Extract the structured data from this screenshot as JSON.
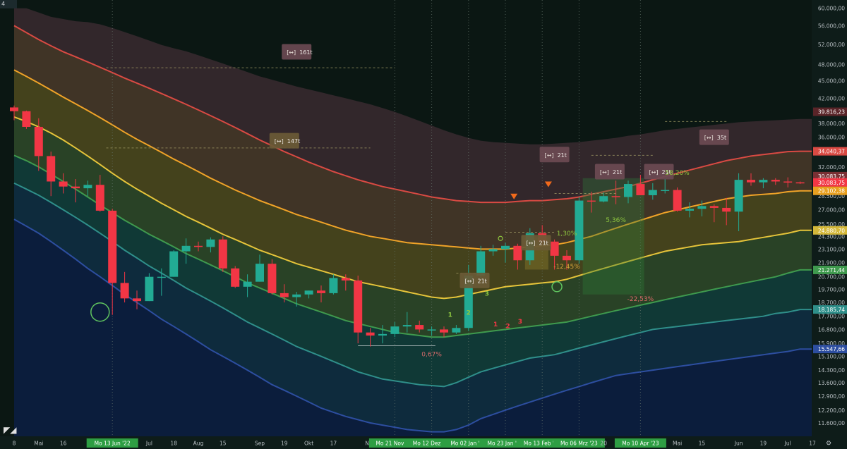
{
  "corner_label": "4",
  "colors": {
    "background": "#0b1713",
    "up": "#22ab94",
    "down": "#f23645",
    "band_red": "#d94a43",
    "band_orange": "#f0a328",
    "band_yellow": "#e6c43a",
    "band_green": "#3f9a4e",
    "band_teal": "#2f8f8a",
    "band_blue": "#2d4ea0",
    "highlight": "#2e9e43"
  },
  "chart_data": {
    "type": "candlestick",
    "y_scale": "log",
    "ylim": [
      11000,
      62000
    ],
    "y_ticks": [
      "60.000,00",
      "56.000,00",
      "52.000,00",
      "48.000,00",
      "45.000,00",
      "42.000,00",
      "38.000,00",
      "36.000,00",
      "34.000,00",
      "32.000,00",
      "30.000,00",
      "28.500,00",
      "27.000,00",
      "25.500,00",
      "24.300,00",
      "23.100,00",
      "21.900,00",
      "20.700,00",
      "19.700,00",
      "18.700,00",
      "17.700,00",
      "16.800,00",
      "15.900,00",
      "15.100,00",
      "14.300,00",
      "13.600,00",
      "12.900,00",
      "12.200,00",
      "11.600,00"
    ],
    "x_ticks": [
      {
        "label": "8",
        "week": 0,
        "hl": false
      },
      {
        "label": "Mai",
        "week": 2,
        "hl": false
      },
      {
        "label": "16",
        "week": 4,
        "hl": false
      },
      {
        "label": "Mo 13 Jun '22",
        "week": 8,
        "hl": true
      },
      {
        "label": "Jul",
        "week": 11,
        "hl": false
      },
      {
        "label": "18",
        "week": 13,
        "hl": false
      },
      {
        "label": "Aug",
        "week": 15,
        "hl": false
      },
      {
        "label": "15",
        "week": 17,
        "hl": false
      },
      {
        "label": "Sep",
        "week": 20,
        "hl": false
      },
      {
        "label": "19",
        "week": 22,
        "hl": false
      },
      {
        "label": "Okt",
        "week": 24,
        "hl": false
      },
      {
        "label": "17",
        "week": 26,
        "hl": false
      },
      {
        "label": "Nov",
        "week": 29,
        "hl": false
      },
      {
        "label": "Mo 21 Nov '22",
        "week": 31,
        "hl": true
      },
      {
        "label": "Mo 12 Dez '22",
        "week": 34,
        "hl": true
      },
      {
        "label": "Mo 02 Jan '23",
        "week": 37,
        "hl": true
      },
      {
        "label": "Mo 23 Jan '23",
        "week": 40,
        "hl": true
      },
      {
        "label": "Mo 13 Feb '23",
        "week": 43,
        "hl": true
      },
      {
        "label": "Mo 06 Mrz '23",
        "week": 46,
        "hl": true
      },
      {
        "label": "20",
        "week": 48,
        "hl": false
      },
      {
        "label": "Mo 10 Apr '23",
        "week": 51,
        "hl": true
      },
      {
        "label": "Mai",
        "week": 54,
        "hl": false
      },
      {
        "label": "15",
        "week": 56,
        "hl": false
      },
      {
        "label": "Jun",
        "week": 59,
        "hl": false
      },
      {
        "label": "19",
        "week": 61,
        "hl": false
      },
      {
        "label": "Jul",
        "week": 63,
        "hl": false
      },
      {
        "label": "17",
        "week": 65,
        "hl": false
      }
    ],
    "candles": [
      [
        40500,
        40800,
        38500,
        39900
      ],
      [
        39900,
        40000,
        37200,
        37500
      ],
      [
        37500,
        38800,
        31500,
        33400
      ],
      [
        33400,
        34000,
        28500,
        30200
      ],
      [
        30200,
        31200,
        28800,
        29600
      ],
      [
        29600,
        30500,
        27800,
        29400
      ],
      [
        29400,
        30300,
        28500,
        29800
      ],
      [
        29800,
        31000,
        26800,
        26900
      ],
      [
        26900,
        27100,
        17800,
        20200
      ],
      [
        20200,
        21100,
        18700,
        19000
      ],
      [
        19000,
        19600,
        18200,
        18800
      ],
      [
        18800,
        21000,
        18800,
        20700
      ],
      [
        20700,
        21400,
        19200,
        20700
      ],
      [
        20700,
        23000,
        20700,
        22900
      ],
      [
        22900,
        24100,
        21800,
        23400
      ],
      [
        23400,
        23800,
        22900,
        23300
      ],
      [
        23300,
        24200,
        22800,
        24000
      ],
      [
        24000,
        24300,
        21100,
        21400
      ],
      [
        21400,
        21600,
        19800,
        19900
      ],
      [
        19900,
        20900,
        19100,
        20300
      ],
      [
        20300,
        22600,
        20300,
        21800
      ],
      [
        21800,
        22200,
        19300,
        19400
      ],
      [
        19400,
        20100,
        18700,
        19100
      ],
      [
        19100,
        19500,
        18400,
        19300
      ],
      [
        19300,
        19600,
        19000,
        19600
      ],
      [
        19600,
        20000,
        18700,
        19400
      ],
      [
        19400,
        20900,
        19300,
        20600
      ],
      [
        20600,
        20900,
        19600,
        20400
      ],
      [
        20400,
        20800,
        15900,
        16600
      ],
      [
        16600,
        16900,
        15700,
        16400
      ],
      [
        16400,
        17100,
        15900,
        16500
      ],
      [
        16500,
        17300,
        16300,
        17000
      ],
      [
        17000,
        18000,
        16600,
        17100
      ],
      [
        17100,
        17400,
        16600,
        16800
      ],
      [
        16800,
        17000,
        16400,
        16800
      ],
      [
        16800,
        17000,
        16300,
        16600
      ],
      [
        16600,
        17100,
        16500,
        16900
      ],
      [
        16900,
        21700,
        16700,
        20800
      ],
      [
        20800,
        23400,
        20500,
        22900
      ],
      [
        22900,
        23500,
        22500,
        23100
      ],
      [
        23100,
        23700,
        21900,
        23400
      ],
      [
        23400,
        23600,
        21300,
        22100
      ],
      [
        22100,
        25100,
        21700,
        24600
      ],
      [
        24600,
        25400,
        23500,
        23800
      ],
      [
        23800,
        24000,
        21300,
        22500
      ],
      [
        22500,
        23000,
        21300,
        22100
      ],
      [
        22100,
        28400,
        21800,
        28000
      ],
      [
        28000,
        29000,
        26700,
        27900
      ],
      [
        27900,
        28900,
        27800,
        28500
      ],
      [
        28500,
        30300,
        27600,
        28400
      ],
      [
        28400,
        30300,
        27700,
        29900
      ],
      [
        29900,
        31000,
        28600,
        28600
      ],
      [
        28600,
        30000,
        28100,
        29200
      ],
      [
        29200,
        30500,
        28800,
        29200
      ],
      [
        29200,
        29500,
        26800,
        26900
      ],
      [
        26900,
        27800,
        26200,
        27100
      ],
      [
        27100,
        28000,
        26300,
        27400
      ],
      [
        27400,
        27600,
        25700,
        27200
      ],
      [
        27200,
        28300,
        25400,
        26800
      ],
      [
        26800,
        31200,
        24800,
        30400
      ],
      [
        30400,
        31200,
        29700,
        30100
      ],
      [
        30100,
        30600,
        29400,
        30400
      ],
      [
        30400,
        30600,
        29800,
        30200
      ],
      [
        30200,
        30700,
        29500,
        30100
      ],
      [
        30100,
        30200,
        29900,
        30084
      ]
    ],
    "bands": [
      {
        "name": "outer",
        "last": "",
        "values": [
          60000,
          60000,
          59000,
          58000,
          57500,
          57000,
          56800,
          56300,
          55500,
          54600,
          53700,
          52800,
          51900,
          51200,
          50600,
          49800,
          49000,
          48200,
          47400,
          46600,
          45800,
          45200,
          44600,
          44000,
          43500,
          43000,
          42500,
          42000,
          41500,
          41000,
          40400,
          39800,
          39100,
          38400,
          37700,
          37000,
          36400,
          35900,
          35500,
          35300,
          35200,
          35100,
          35000,
          35000,
          35100,
          35200,
          35300,
          35500,
          35700,
          35900,
          36200,
          36400,
          36700,
          37000,
          37200,
          37400,
          37600,
          37800,
          38000,
          38200,
          38300,
          38400,
          38500,
          38600,
          38700
        ]
      },
      {
        "name": "red",
        "last": "34.040,37",
        "values": [
          56000,
          54500,
          53000,
          51700,
          50500,
          49500,
          48500,
          47500,
          46500,
          45500,
          44600,
          43700,
          42800,
          41900,
          41000,
          40100,
          39200,
          38300,
          37400,
          36500,
          35600,
          34800,
          34000,
          33300,
          32600,
          32000,
          31400,
          30900,
          30400,
          30000,
          29600,
          29300,
          29000,
          28700,
          28400,
          28200,
          28000,
          27900,
          27800,
          27800,
          27800,
          27900,
          28000,
          28000,
          28100,
          28200,
          28400,
          28700,
          29000,
          29300,
          29600,
          30000,
          30400,
          30800,
          31200,
          31600,
          32000,
          32400,
          32800,
          33100,
          33400,
          33600,
          33800,
          34000,
          34040
        ]
      },
      {
        "name": "orange",
        "last": "29.102,38",
        "values": [
          47000,
          45800,
          44600,
          43400,
          42200,
          41100,
          40000,
          38900,
          37800,
          36700,
          35700,
          34800,
          33900,
          33000,
          32200,
          31400,
          30600,
          29900,
          29200,
          28600,
          28000,
          27500,
          27000,
          26500,
          26100,
          25700,
          25300,
          24900,
          24600,
          24300,
          24100,
          23900,
          23700,
          23600,
          23500,
          23400,
          23300,
          23200,
          23100,
          23100,
          23100,
          23200,
          23300,
          23400,
          23500,
          23700,
          24000,
          24300,
          24700,
          25100,
          25500,
          25900,
          26300,
          26700,
          27000,
          27300,
          27600,
          27900,
          28200,
          28400,
          28600,
          28700,
          28800,
          29000,
          29102
        ]
      },
      {
        "name": "yellow",
        "last": "24.880,70",
        "values": [
          39000,
          38300,
          37500,
          36600,
          35600,
          34500,
          33400,
          32300,
          31200,
          30200,
          29300,
          28500,
          27700,
          27000,
          26300,
          25700,
          25100,
          24500,
          24000,
          23500,
          23000,
          22600,
          22200,
          21800,
          21500,
          21200,
          20900,
          20600,
          20300,
          20100,
          19900,
          19700,
          19500,
          19300,
          19100,
          19000,
          19100,
          19300,
          19500,
          19700,
          19900,
          20000,
          20100,
          20200,
          20300,
          20500,
          20800,
          21100,
          21400,
          21700,
          22000,
          22300,
          22600,
          22900,
          23100,
          23300,
          23500,
          23600,
          23700,
          23800,
          24000,
          24200,
          24400,
          24600,
          24880
        ]
      },
      {
        "name": "green",
        "last": "21.271,44",
        "values": [
          33500,
          32800,
          32000,
          31100,
          30200,
          29300,
          28400,
          27500,
          26700,
          25900,
          25200,
          24500,
          23900,
          23300,
          22700,
          22200,
          21700,
          21200,
          20700,
          20200,
          19800,
          19400,
          19000,
          18600,
          18300,
          18000,
          17700,
          17400,
          17200,
          17000,
          16800,
          16600,
          16500,
          16400,
          16300,
          16300,
          16400,
          16500,
          16600,
          16700,
          16800,
          16900,
          17000,
          17100,
          17200,
          17300,
          17500,
          17700,
          17900,
          18100,
          18300,
          18500,
          18700,
          18900,
          19100,
          19300,
          19500,
          19700,
          19900,
          20100,
          20300,
          20500,
          20700,
          21000,
          21271
        ]
      },
      {
        "name": "teal",
        "last": "18.185,74",
        "values": [
          30000,
          29300,
          28600,
          27800,
          27000,
          26200,
          25400,
          24600,
          23800,
          23000,
          22300,
          21600,
          21000,
          20400,
          19800,
          19300,
          18800,
          18300,
          17800,
          17300,
          16900,
          16500,
          16100,
          15700,
          15400,
          15100,
          14800,
          14500,
          14200,
          14000,
          13800,
          13700,
          13600,
          13500,
          13450,
          13400,
          13600,
          13900,
          14200,
          14400,
          14600,
          14800,
          15000,
          15100,
          15200,
          15400,
          15600,
          15800,
          16000,
          16200,
          16400,
          16600,
          16800,
          16900,
          17000,
          17100,
          17200,
          17300,
          17400,
          17500,
          17600,
          17700,
          17900,
          18000,
          18185
        ]
      },
      {
        "name": "blue",
        "last": "15.547,66",
        "values": [
          26000,
          25300,
          24600,
          23800,
          23000,
          22200,
          21400,
          20700,
          20000,
          19300,
          18700,
          18100,
          17500,
          17000,
          16500,
          16000,
          15500,
          15100,
          14700,
          14300,
          13900,
          13500,
          13200,
          12900,
          12600,
          12300,
          12100,
          11900,
          11750,
          11600,
          11500,
          11400,
          11300,
          11250,
          11200,
          11200,
          11300,
          11500,
          11800,
          12000,
          12200,
          12400,
          12600,
          12800,
          13000,
          13200,
          13400,
          13600,
          13800,
          14000,
          14100,
          14200,
          14300,
          14400,
          14500,
          14600,
          14700,
          14800,
          14900,
          15000,
          15100,
          15200,
          15300,
          15400,
          15547
        ]
      }
    ],
    "price_labels": [
      {
        "text": "39.816,23",
        "value": 39816,
        "color": "#5a2428"
      },
      {
        "text": "30.083,75",
        "value": 30850,
        "color": "#7a3034"
      },
      {
        "text": "30.083,75",
        "value": 30084,
        "color": "#f23645"
      }
    ],
    "bar_count_labels": [
      {
        "text": "161t",
        "week": 23,
        "price": 50500
      },
      {
        "text": "147t",
        "week": 22,
        "price": 35500
      },
      {
        "text": "21t",
        "week": 44,
        "price": 33600
      },
      {
        "text": "21t",
        "week": 48.5,
        "price": 31400
      },
      {
        "text": "21t",
        "week": 52.5,
        "price": 31400
      },
      {
        "text": "35t",
        "week": 57,
        "price": 36000
      },
      {
        "text": "21t",
        "week": 42.5,
        "price": 23700
      },
      {
        "text": "21t",
        "week": 37.5,
        "price": 20400
      }
    ],
    "percent_labels": [
      {
        "text": "58,20%",
        "week": 54,
        "price": 31000,
        "color": "#8ec63f"
      },
      {
        "text": "5,36%",
        "week": 49,
        "price": 25700,
        "color": "#8ec63f"
      },
      {
        "text": "1,30%",
        "week": 45,
        "price": 24400,
        "color": "#8ec63f"
      },
      {
        "text": "-12,45%",
        "week": 45,
        "price": 21400,
        "color": "#d4a23a"
      },
      {
        "text": "-22,53%",
        "week": 51,
        "price": 18800,
        "color": "#e06a6a"
      },
      {
        "text": "0,67%",
        "week": 34,
        "price": 15100,
        "color": "#d46a6a"
      }
    ],
    "count_labels": [
      {
        "text": "1",
        "week": 35.5,
        "price": 17650,
        "color": "#8ec63f"
      },
      {
        "text": "2",
        "week": 37,
        "price": 17800,
        "color": "#8ec63f"
      },
      {
        "text": "3",
        "week": 38.5,
        "price": 19200,
        "color": "#8ec63f"
      },
      {
        "text": "1",
        "week": 39.2,
        "price": 17000,
        "color": "#f23645"
      },
      {
        "text": "2",
        "week": 40.2,
        "price": 16900,
        "color": "#f23645"
      },
      {
        "text": "3",
        "week": 41.2,
        "price": 17200,
        "color": "#f23645"
      }
    ]
  }
}
